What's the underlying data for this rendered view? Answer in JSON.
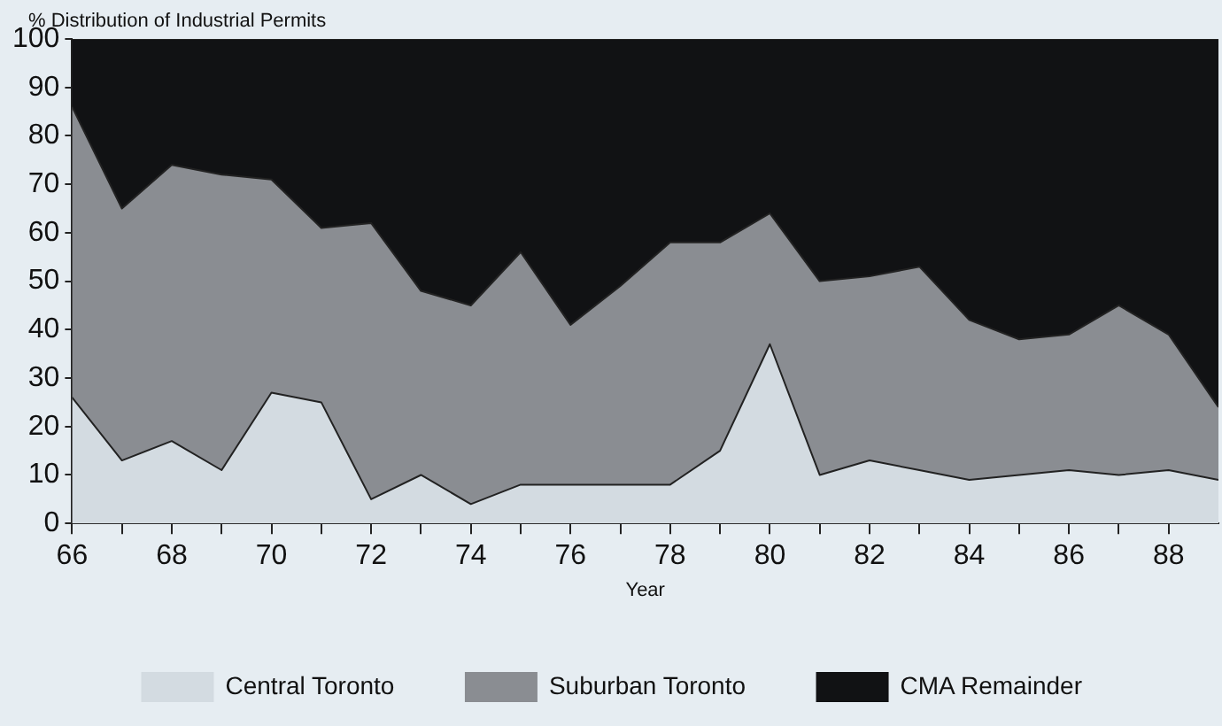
{
  "chart_data": {
    "type": "area",
    "stacked": true,
    "ylabel": "% Distribution of Industrial Permits",
    "xlabel": "Year",
    "x": [
      66,
      67,
      68,
      69,
      70,
      71,
      72,
      73,
      74,
      75,
      76,
      77,
      78,
      79,
      80,
      81,
      82,
      83,
      84,
      85,
      86,
      87,
      88,
      89
    ],
    "series": [
      {
        "name": "Central Toronto",
        "color": "#d3dbe1",
        "values": [
          26,
          13,
          17,
          11,
          27,
          25,
          5,
          10,
          4,
          8,
          8,
          8,
          8,
          15,
          37,
          10,
          13,
          11,
          9,
          10,
          11,
          10,
          11,
          9
        ]
      },
      {
        "name": "Suburban Toronto",
        "color": "#8a8d92",
        "values": [
          60,
          52,
          57,
          61,
          44,
          36,
          57,
          38,
          41,
          48,
          33,
          41,
          50,
          43,
          27,
          40,
          38,
          42,
          33,
          28,
          28,
          35,
          28,
          15
        ]
      },
      {
        "name": "CMA Remainder",
        "color": "#111214",
        "values": [
          14,
          35,
          26,
          28,
          29,
          39,
          38,
          52,
          55,
          44,
          59,
          51,
          42,
          42,
          36,
          50,
          49,
          47,
          58,
          62,
          61,
          55,
          61,
          76
        ]
      }
    ],
    "xlim": [
      66,
      89
    ],
    "xticks": [
      66,
      {
        "value": 67,
        "label": null
      },
      68,
      {
        "value": 69,
        "label": null
      },
      70,
      {
        "value": 71,
        "label": null
      },
      72,
      {
        "value": 73,
        "label": null
      },
      74,
      {
        "value": 75,
        "label": null
      },
      76,
      {
        "value": 77,
        "label": null
      },
      78,
      {
        "value": 79,
        "label": null
      },
      80,
      {
        "value": 81,
        "label": null
      },
      82,
      {
        "value": 83,
        "label": null
      },
      84,
      {
        "value": 85,
        "label": null
      },
      86,
      {
        "value": 87,
        "label": null
      },
      88
    ],
    "ylim": [
      0,
      100
    ],
    "yticks": [
      0,
      10,
      20,
      30,
      40,
      50,
      60,
      70,
      80,
      90,
      100
    ],
    "grid": false,
    "legend": "bottom"
  }
}
